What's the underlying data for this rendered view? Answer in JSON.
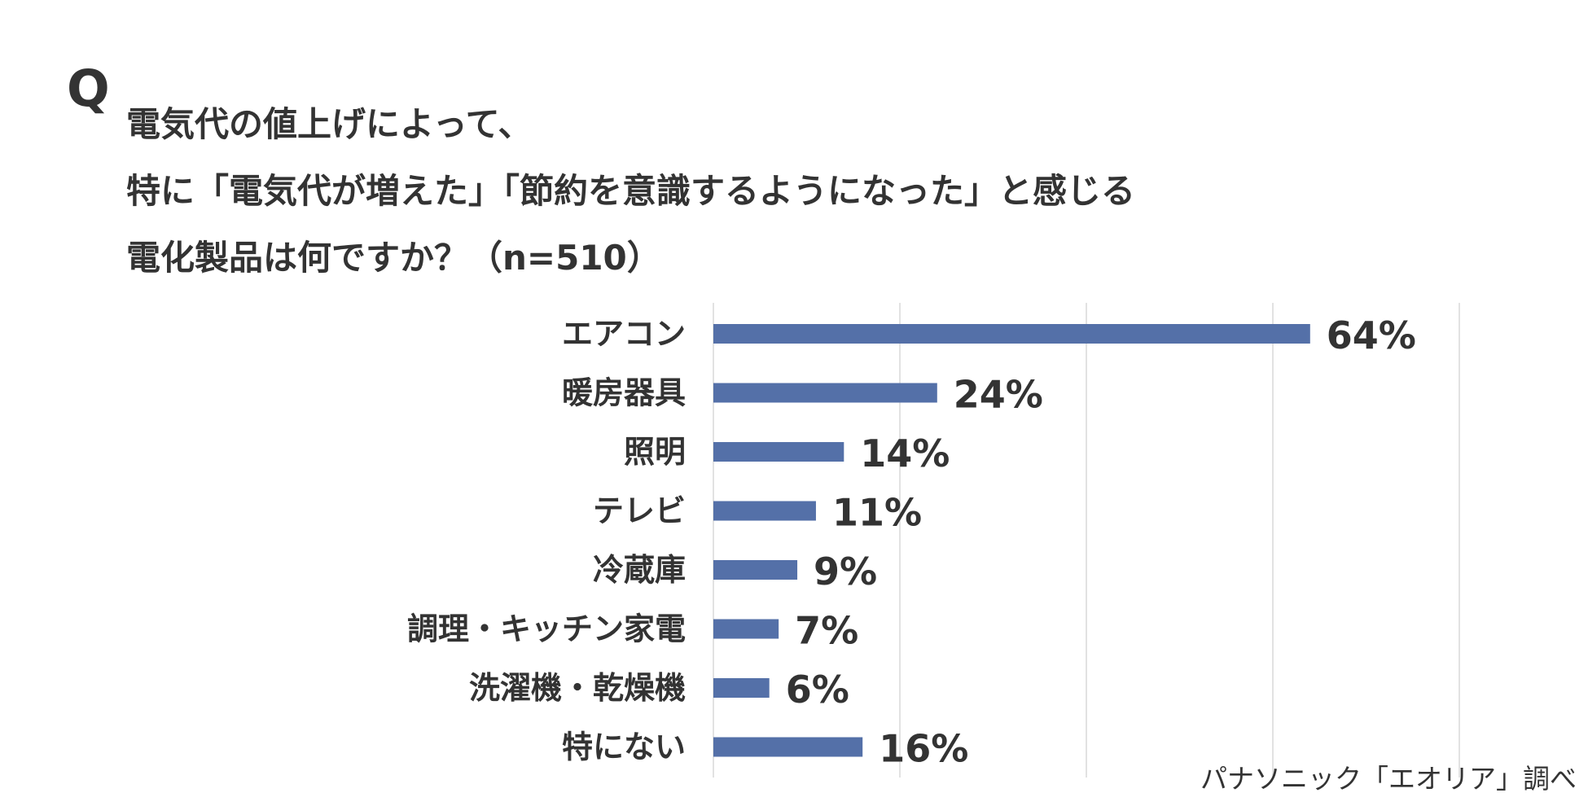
{
  "question": {
    "q_mark": "Q",
    "lines": [
      "電気代の値上げによって、",
      "特に「電気代が増えた」「節約を意識するようになった」と感じる",
      "電化製品は何ですか？（n=510）"
    ]
  },
  "source": "パナソニック「エオリア」調べ",
  "colors": {
    "bar": "#5470A8",
    "grid": "#D9D9D9",
    "text": "#333333"
  },
  "chart_data": {
    "type": "bar",
    "orientation": "horizontal",
    "categories": [
      "エアコン",
      "暖房器具",
      "照明",
      "テレビ",
      "冷蔵庫",
      "調理・キッチン家電",
      "洗濯機・乾燥機",
      "特にない"
    ],
    "values": [
      64,
      24,
      14,
      11,
      9,
      7,
      6,
      16
    ],
    "data_labels": [
      "64%",
      "24%",
      "14%",
      "11%",
      "9%",
      "7%",
      "6%",
      "16%"
    ],
    "xlim": [
      0,
      80
    ],
    "grid": true,
    "grid_step": 20,
    "title": "",
    "xlabel": "",
    "ylabel": ""
  }
}
